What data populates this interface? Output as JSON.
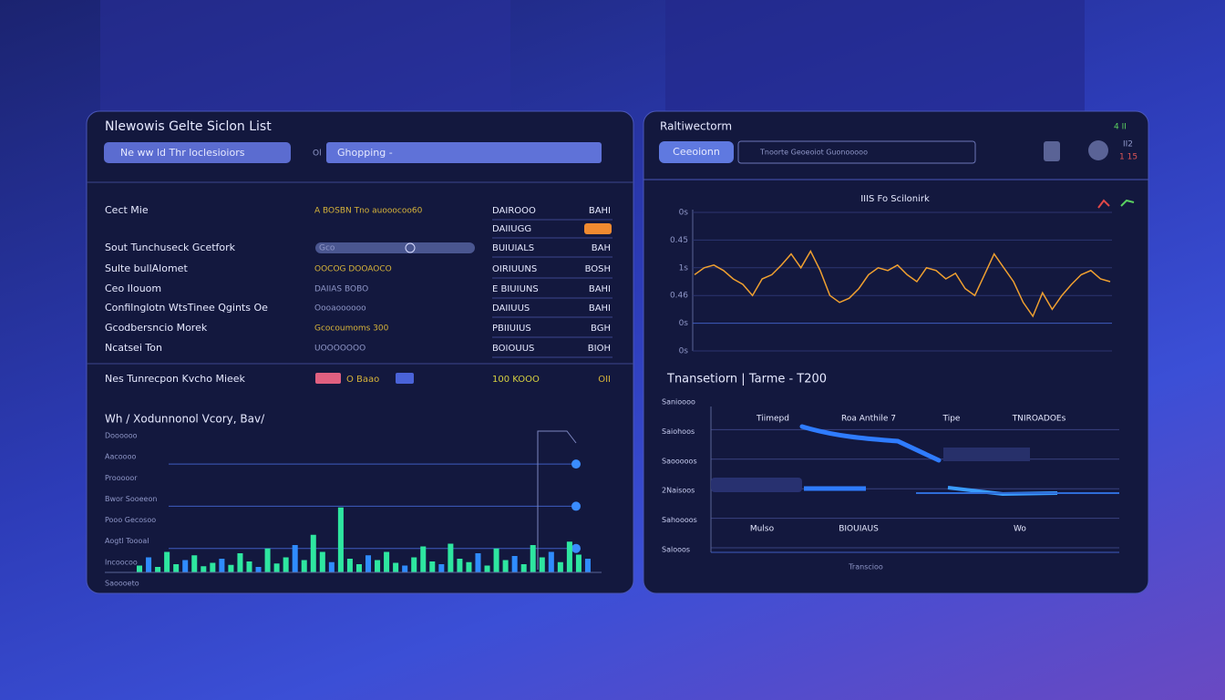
{
  "left_panel": {
    "title": "Nlewowis Gelte Siclon List",
    "search_button": "Ne ww ld Thr loclesioiors",
    "search_prefix": "Ol",
    "search_field": "Ghopping -",
    "rows": [
      {
        "name": "Cect Mie",
        "detail": "A  BOSBN Tno auooocoo60",
        "status": "DAIROOO",
        "value": "BAHI"
      },
      {
        "name": null,
        "detail": null,
        "status": "DAIIUGG",
        "value": null
      },
      {
        "name": "Sout Tunchuseck Gcetfork",
        "detail": "Gco",
        "status": "BUIUIALS",
        "value": "BAH"
      },
      {
        "name": "Sulte bullAlomet",
        "detail": "OOCOG  DOOAOCO",
        "status": "OIRIUUNS",
        "value": "BOSH"
      },
      {
        "name": "Ceo Ilouom",
        "detail": "DAIIAS  BOBO",
        "status": "E BIUIUNS",
        "value": "BAHI"
      },
      {
        "name": "Confilnglotn WtsTinee Qgints Oe",
        "detail": "Oooaoooooo",
        "status": "DAIIUUS",
        "value": "BAHI"
      },
      {
        "name": "Gcodbersncio Morek",
        "detail": "Gcocoumoms 300",
        "status": "PBIIUIUS",
        "value": "BGH"
      },
      {
        "name": "Ncatsei Ton",
        "detail": "UOOOOOOO",
        "status": "BOIOUUS",
        "value": "BIOH"
      }
    ],
    "summary": {
      "name": "Nes Tunrecpon Kvcho Mieek",
      "detail": "O  Baao",
      "status": "100 KOOO",
      "value": "OII"
    },
    "chart_title": "Wh / Xodunnonol Vcory, Bav/",
    "chart_labels": [
      "Doooooo",
      "Aacoooo",
      "Prooooor",
      "Bwor Sooeeon",
      "Pooo Gecosoo",
      "Aogtl Toooal",
      "Incoocoo",
      "Saoooeto"
    ],
    "bars": {
      "ylim": [
        0,
        100
      ],
      "values": [
        10,
        22,
        8,
        30,
        12,
        18,
        25,
        9,
        14,
        20,
        11,
        28,
        16,
        8,
        35,
        13,
        22,
        40,
        18,
        55,
        30,
        15,
        95,
        20,
        12,
        25,
        18,
        30,
        14,
        10,
        22,
        38,
        16,
        12,
        42,
        20,
        15,
        28,
        10,
        35,
        18,
        24,
        12,
        40,
        22,
        30,
        15,
        45,
        26,
        20
      ]
    }
  },
  "right_panel": {
    "title": "Raltiwectorm",
    "button": "Ceeoionn",
    "input": "Tnoorte Geoeoiot Guonooooo",
    "indicator_top": "4 II",
    "indicator_mid": "II2",
    "indicator_bottom": "1 15",
    "chart_title": "IIIS Fo Scilonirk",
    "yticks": [
      "0s",
      "0.45",
      "1s",
      "0.46",
      "0s",
      "0s"
    ],
    "line": {
      "ylim": [
        0,
        100
      ],
      "values": [
        55,
        60,
        62,
        58,
        52,
        48,
        40,
        52,
        55,
        62,
        70,
        60,
        72,
        58,
        40,
        35,
        38,
        45,
        55,
        60,
        58,
        62,
        55,
        50,
        60,
        58,
        52,
        56,
        45,
        40,
        55,
        70,
        60,
        50,
        35,
        25,
        42,
        30,
        40,
        48,
        55,
        58,
        52,
        50
      ]
    },
    "section_title": "Tnansetiorn | Tarme - T200",
    "table_ylabels": [
      "Sanioooo",
      "Saiohoos",
      "Saooooos",
      "2Naisoos",
      "Sahoooos",
      "Salooos"
    ],
    "columns": [
      "Tiimepd",
      "Roa Anthile 7",
      "Tipe",
      "TNIROADOEs"
    ],
    "bottom_labels": [
      "Mulso",
      "BIOUIAUS",
      "Wo"
    ],
    "footer": "Transcioo"
  }
}
